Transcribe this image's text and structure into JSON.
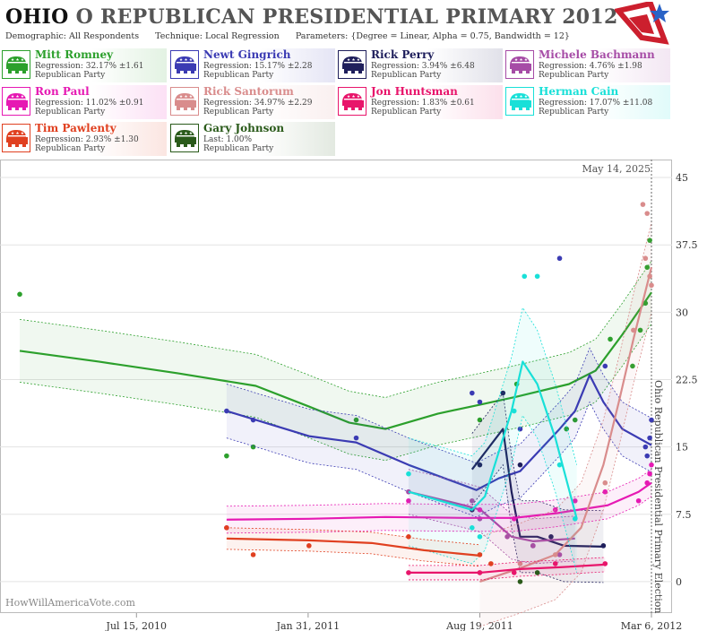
{
  "header": {
    "state": "OHIO",
    "rest": "O REPUBLICAN PRESIDENTIAL PRIMARY",
    "year": "2012",
    "demographic_label": "Demographic:",
    "demographic": "All Respondents",
    "technique_label": "Technique:",
    "technique": "Local Regression",
    "parameters_label": "Parameters:",
    "parameters": "{Degree = Linear, Alpha = 0.75, Bandwidth = 12}"
  },
  "candidates": [
    {
      "name": "Mitt Romney",
      "stat": "Regression: 32.17% ±1.61",
      "party": "Republican Party",
      "color": "#2ca02c"
    },
    {
      "name": "Newt Gingrich",
      "stat": "Regression: 15.17% ±2.28",
      "party": "Republican Party",
      "color": "#3b3bb3"
    },
    {
      "name": "Rick Perry",
      "stat": "Regression: 3.94% ±6.48",
      "party": "Republican Party",
      "color": "#1f1f5c"
    },
    {
      "name": "Michele Bachmann",
      "stat": "Regression: 4.76% ±1.98",
      "party": "Republican Party",
      "color": "#a64ca6"
    },
    {
      "name": "Ron Paul",
      "stat": "Regression: 11.02% ±0.91",
      "party": "Republican Party",
      "color": "#e619b3"
    },
    {
      "name": "Rick Santorum",
      "stat": "Regression: 34.97% ±2.29",
      "party": "Republican Party",
      "color": "#d98c8c"
    },
    {
      "name": "Jon Huntsman",
      "stat": "Regression: 1.83% ±0.61",
      "party": "Republican Party",
      "color": "#e8156b"
    },
    {
      "name": "Herman Cain",
      "stat": "Regression: 17.07% ±11.08",
      "party": "Republican Party",
      "color": "#19e0d8"
    },
    {
      "name": "Tim Pawlenty",
      "stat": "Regression: 2.93% ±1.30",
      "party": "Republican Party",
      "color": "#e04020"
    },
    {
      "name": "Gary Johnson",
      "stat": "Last: 1.00%",
      "party": "Republican Party",
      "color": "#2a5a1a"
    }
  ],
  "chart_data": {
    "type": "line",
    "x_ticks": [
      "Jul 15, 2010",
      "Jan 31, 2011",
      "Aug 19, 2011",
      "Mar 6, 2012"
    ],
    "x_tick_dates": [
      "2010-07-15",
      "2011-01-31",
      "2011-08-19",
      "2012-03-06"
    ],
    "y_ticks": [
      "0",
      "7.5",
      "15",
      "22.5",
      "30",
      "37.5",
      "45"
    ],
    "ylim": [
      -3.5,
      47
    ],
    "xlim": [
      "2010-02-06",
      "2012-03-30"
    ],
    "current_date_label": "May 14, 2025",
    "event_label": "Ohio Republican Presidential Primary Election",
    "event_date": "2012-03-06",
    "grid": "horizontal",
    "watermark": "HowWillAmericaVote.com",
    "series": [
      {
        "name": "Mitt Romney",
        "color": "#2ca02c",
        "line": [
          [
            "2010-03-01",
            25.7
          ],
          [
            "2010-06-01",
            24.5
          ],
          [
            "2010-09-01",
            23.2
          ],
          [
            "2010-12-01",
            21.8
          ],
          [
            "2011-02-01",
            19.5
          ],
          [
            "2011-03-20",
            17.7
          ],
          [
            "2011-05-01",
            17.0
          ],
          [
            "2011-07-01",
            18.7
          ],
          [
            "2011-08-19",
            19.7
          ],
          [
            "2011-10-01",
            20.6
          ],
          [
            "2011-12-01",
            22.0
          ],
          [
            "2012-01-01",
            23.5
          ],
          [
            "2012-02-01",
            27.5
          ],
          [
            "2012-03-06",
            32.2
          ]
        ],
        "points": [
          [
            "2010-03-01",
            32
          ],
          [
            "2010-10-28",
            14
          ],
          [
            "2010-11-28",
            15
          ],
          [
            "2011-03-28",
            18
          ],
          [
            "2011-08-10",
            8
          ],
          [
            "2011-08-19",
            18
          ],
          [
            "2011-10-01",
            22
          ],
          [
            "2011-11-28",
            17
          ],
          [
            "2011-12-08",
            18
          ],
          [
            "2012-01-18",
            27
          ],
          [
            "2012-02-13",
            24
          ],
          [
            "2012-02-22",
            28
          ],
          [
            "2012-02-28",
            31
          ],
          [
            "2012-03-01",
            35
          ],
          [
            "2012-03-04",
            38
          ]
        ],
        "band": 3.5
      },
      {
        "name": "Newt Gingrich",
        "color": "#3b3bb3",
        "line": [
          [
            "2010-10-28",
            19.0
          ],
          [
            "2010-12-15",
            17.6
          ],
          [
            "2011-02-01",
            16.2
          ],
          [
            "2011-03-28",
            15.5
          ],
          [
            "2011-05-28",
            13.0
          ],
          [
            "2011-08-01",
            10.7
          ],
          [
            "2011-08-15",
            10.2
          ],
          [
            "2011-09-10",
            11.5
          ],
          [
            "2011-10-05",
            12.3
          ],
          [
            "2011-11-20",
            17.0
          ],
          [
            "2011-12-08",
            19.0
          ],
          [
            "2011-12-25",
            23.0
          ],
          [
            "2012-01-10",
            20.0
          ],
          [
            "2012-02-01",
            17.0
          ],
          [
            "2012-03-06",
            15.2
          ]
        ],
        "points": [
          [
            "2010-10-28",
            19
          ],
          [
            "2010-11-28",
            18
          ],
          [
            "2011-03-28",
            16
          ],
          [
            "2011-08-10",
            21
          ],
          [
            "2011-08-19",
            20
          ],
          [
            "2011-10-05",
            17
          ],
          [
            "2011-11-20",
            36
          ],
          [
            "2012-01-12",
            24
          ],
          [
            "2012-02-28",
            15
          ],
          [
            "2012-03-01",
            14
          ],
          [
            "2012-03-04",
            16
          ],
          [
            "2012-03-06",
            18
          ]
        ],
        "band": 3
      },
      {
        "name": "Rick Perry",
        "color": "#1f1f5c",
        "line": [
          [
            "2011-08-10",
            12.5
          ],
          [
            "2011-09-15",
            17.0
          ],
          [
            "2011-09-25",
            10.0
          ],
          [
            "2011-10-05",
            5.0
          ],
          [
            "2011-10-25",
            5.0
          ],
          [
            "2011-11-25",
            4.0
          ],
          [
            "2012-01-10",
            3.9
          ]
        ],
        "points": [
          [
            "2011-08-10",
            8
          ],
          [
            "2011-08-19",
            13
          ],
          [
            "2011-09-15",
            21
          ],
          [
            "2011-10-05",
            13
          ],
          [
            "2011-10-20",
            4
          ],
          [
            "2011-11-10",
            5
          ],
          [
            "2012-01-10",
            4
          ]
        ],
        "band": 4
      },
      {
        "name": "Michele Bachmann",
        "color": "#a64ca6",
        "line": [
          [
            "2011-05-28",
            10.0
          ],
          [
            "2011-08-01",
            8.5
          ],
          [
            "2011-08-20",
            8.0
          ],
          [
            "2011-09-25",
            5.0
          ],
          [
            "2011-10-20",
            4.5
          ],
          [
            "2011-12-08",
            4.8
          ]
        ],
        "points": [
          [
            "2011-05-28",
            10
          ],
          [
            "2011-08-10",
            9
          ],
          [
            "2011-08-19",
            7
          ],
          [
            "2011-09-20",
            5
          ],
          [
            "2011-10-20",
            4
          ],
          [
            "2011-11-20",
            3
          ]
        ],
        "band": 2.5
      },
      {
        "name": "Ron Paul",
        "color": "#e619b3",
        "line": [
          [
            "2010-10-28",
            6.9
          ],
          [
            "2011-02-01",
            7.0
          ],
          [
            "2011-05-01",
            7.2
          ],
          [
            "2011-08-01",
            7.1
          ],
          [
            "2011-09-28",
            7.1
          ],
          [
            "2011-11-15",
            7.6
          ],
          [
            "2012-01-15",
            8.5
          ],
          [
            "2012-02-20",
            10.0
          ],
          [
            "2012-03-06",
            11.0
          ]
        ],
        "points": [
          [
            "2010-10-28",
            6
          ],
          [
            "2011-05-28",
            9
          ],
          [
            "2011-08-19",
            8
          ],
          [
            "2011-09-28",
            7
          ],
          [
            "2011-11-15",
            8
          ],
          [
            "2011-12-08",
            9
          ],
          [
            "2012-01-12",
            10
          ],
          [
            "2012-02-20",
            9
          ],
          [
            "2012-03-01",
            11
          ],
          [
            "2012-03-04",
            12
          ],
          [
            "2012-03-06",
            13
          ]
        ],
        "band": 1.5
      },
      {
        "name": "Rick Santorum",
        "color": "#d98c8c",
        "line": [
          [
            "2011-08-19",
            0.0
          ],
          [
            "2011-10-05",
            1.5
          ],
          [
            "2011-11-15",
            3.0
          ],
          [
            "2011-12-15",
            6.0
          ],
          [
            "2012-01-10",
            13.0
          ],
          [
            "2012-01-28",
            20.0
          ],
          [
            "2012-02-14",
            27.0
          ],
          [
            "2012-03-06",
            35.0
          ]
        ],
        "points": [
          [
            "2011-08-19",
            1
          ],
          [
            "2011-10-05",
            2
          ],
          [
            "2011-11-15",
            3
          ],
          [
            "2012-01-12",
            11
          ],
          [
            "2012-02-14",
            28
          ],
          [
            "2012-02-25",
            42
          ],
          [
            "2012-02-28",
            36
          ],
          [
            "2012-03-01",
            41
          ],
          [
            "2012-03-04",
            34
          ],
          [
            "2012-03-06",
            33
          ]
        ],
        "band": 5
      },
      {
        "name": "Jon Huntsman",
        "color": "#e8156b",
        "line": [
          [
            "2011-05-28",
            1.0
          ],
          [
            "2011-08-19",
            1.0
          ],
          [
            "2011-10-05",
            1.4
          ],
          [
            "2011-11-20",
            1.6
          ],
          [
            "2012-01-12",
            1.9
          ]
        ],
        "points": [
          [
            "2011-05-28",
            1
          ],
          [
            "2011-08-19",
            1
          ],
          [
            "2011-09-28",
            1
          ],
          [
            "2011-11-15",
            2
          ],
          [
            "2012-01-12",
            2
          ]
        ],
        "band": 0.8
      },
      {
        "name": "Herman Cain",
        "color": "#19e0d8",
        "line": [
          [
            "2011-05-28",
            10.0
          ],
          [
            "2011-08-10",
            8.0
          ],
          [
            "2011-08-25",
            9.5
          ],
          [
            "2011-09-25",
            19.0
          ],
          [
            "2011-10-08",
            24.5
          ],
          [
            "2011-10-25",
            22.0
          ],
          [
            "2011-11-15",
            16.0
          ],
          [
            "2011-12-10",
            7.0
          ]
        ],
        "points": [
          [
            "2011-05-28",
            12
          ],
          [
            "2011-08-10",
            6
          ],
          [
            "2011-08-19",
            5
          ],
          [
            "2011-09-28",
            19
          ],
          [
            "2011-10-10",
            34
          ],
          [
            "2011-10-25",
            34
          ],
          [
            "2011-11-20",
            13
          ],
          [
            "2011-12-08",
            7
          ]
        ],
        "band": 6
      },
      {
        "name": "Tim Pawlenty",
        "color": "#e04020",
        "line": [
          [
            "2010-10-28",
            4.8
          ],
          [
            "2011-02-01",
            4.6
          ],
          [
            "2011-04-15",
            4.3
          ],
          [
            "2011-06-15",
            3.5
          ],
          [
            "2011-08-19",
            2.9
          ]
        ],
        "points": [
          [
            "2010-10-28",
            6
          ],
          [
            "2010-11-28",
            3
          ],
          [
            "2011-02-01",
            4
          ],
          [
            "2011-05-28",
            5
          ],
          [
            "2011-08-19",
            3
          ],
          [
            "2011-09-01",
            2
          ]
        ],
        "band": 1.2
      },
      {
        "name": "Gary Johnson",
        "color": "#2a5a1a",
        "line": [],
        "points": [
          [
            "2011-10-05",
            0
          ],
          [
            "2011-10-25",
            1
          ]
        ],
        "band": 0
      }
    ]
  }
}
